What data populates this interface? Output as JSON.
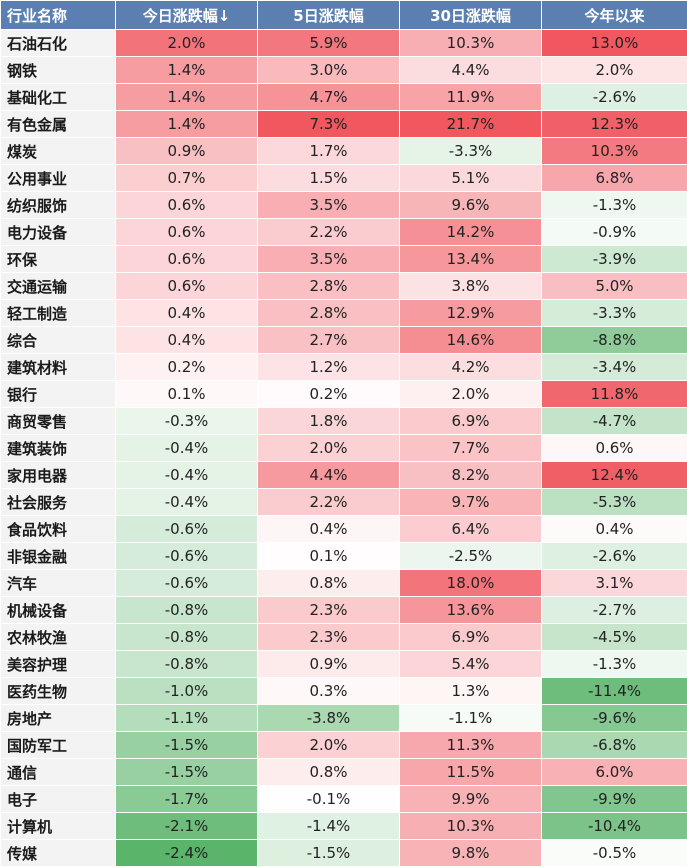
{
  "headers": [
    "行业名称",
    "今日涨跌幅↓",
    "5日涨跌幅",
    "30日涨跌幅",
    "今年以来"
  ],
  "rows": [
    [
      "石油石化",
      "2.0%",
      "5.9%",
      "10.3%",
      "13.0%"
    ],
    [
      "钢铁",
      "1.4%",
      "3.0%",
      "4.4%",
      "2.0%"
    ],
    [
      "基础化工",
      "1.4%",
      "4.7%",
      "11.9%",
      "-2.6%"
    ],
    [
      "有色金属",
      "1.4%",
      "7.3%",
      "21.7%",
      "12.3%"
    ],
    [
      "煤炭",
      "0.9%",
      "1.7%",
      "-3.3%",
      "10.3%"
    ],
    [
      "公用事业",
      "0.7%",
      "1.5%",
      "5.1%",
      "6.8%"
    ],
    [
      "纺织服饰",
      "0.6%",
      "3.5%",
      "9.6%",
      "-1.3%"
    ],
    [
      "电力设备",
      "0.6%",
      "2.2%",
      "14.2%",
      "-0.9%"
    ],
    [
      "环保",
      "0.6%",
      "3.5%",
      "13.4%",
      "-3.9%"
    ],
    [
      "交通运输",
      "0.6%",
      "2.8%",
      "3.8%",
      "5.0%"
    ],
    [
      "轻工制造",
      "0.4%",
      "2.8%",
      "12.9%",
      "-3.3%"
    ],
    [
      "综合",
      "0.4%",
      "2.7%",
      "14.6%",
      "-8.8%"
    ],
    [
      "建筑材料",
      "0.2%",
      "1.2%",
      "4.2%",
      "-3.4%"
    ],
    [
      "银行",
      "0.1%",
      "0.2%",
      "2.0%",
      "11.8%"
    ],
    [
      "商贸零售",
      "-0.3%",
      "1.8%",
      "6.9%",
      "-4.7%"
    ],
    [
      "建筑装饰",
      "-0.4%",
      "2.0%",
      "7.7%",
      "0.6%"
    ],
    [
      "家用电器",
      "-0.4%",
      "4.4%",
      "8.2%",
      "12.4%"
    ],
    [
      "社会服务",
      "-0.4%",
      "2.2%",
      "9.7%",
      "-5.3%"
    ],
    [
      "食品饮料",
      "-0.6%",
      "0.4%",
      "6.4%",
      "0.4%"
    ],
    [
      "非银金融",
      "-0.6%",
      "0.1%",
      "-2.5%",
      "-2.6%"
    ],
    [
      "汽车",
      "-0.6%",
      "0.8%",
      "18.0%",
      "3.1%"
    ],
    [
      "机械设备",
      "-0.8%",
      "2.3%",
      "13.6%",
      "-2.7%"
    ],
    [
      "农林牧渔",
      "-0.8%",
      "2.3%",
      "6.9%",
      "-4.5%"
    ],
    [
      "美容护理",
      "-0.8%",
      "0.9%",
      "5.4%",
      "-1.3%"
    ],
    [
      "医药生物",
      "-1.0%",
      "0.3%",
      "1.3%",
      "-11.4%"
    ],
    [
      "房地产",
      "-1.1%",
      "-3.8%",
      "-1.1%",
      "-9.6%"
    ],
    [
      "国防军工",
      "-1.5%",
      "2.0%",
      "11.3%",
      "-6.8%"
    ],
    [
      "通信",
      "-1.5%",
      "0.8%",
      "11.5%",
      "6.0%"
    ],
    [
      "电子",
      "-1.7%",
      "-0.1%",
      "9.9%",
      "-9.9%"
    ],
    [
      "计算机",
      "-2.1%",
      "-1.4%",
      "10.3%",
      "-10.4%"
    ],
    [
      "传媒",
      "-2.4%",
      "-1.5%",
      "9.8%",
      "-0.5%"
    ]
  ],
  "colors": {
    "header_bg": "#5a7fb0",
    "header_text": "#ffffff",
    "name_bg": "#f3f3f3",
    "positive_max": "#f0575f",
    "negative_max": "#5ab46a"
  }
}
